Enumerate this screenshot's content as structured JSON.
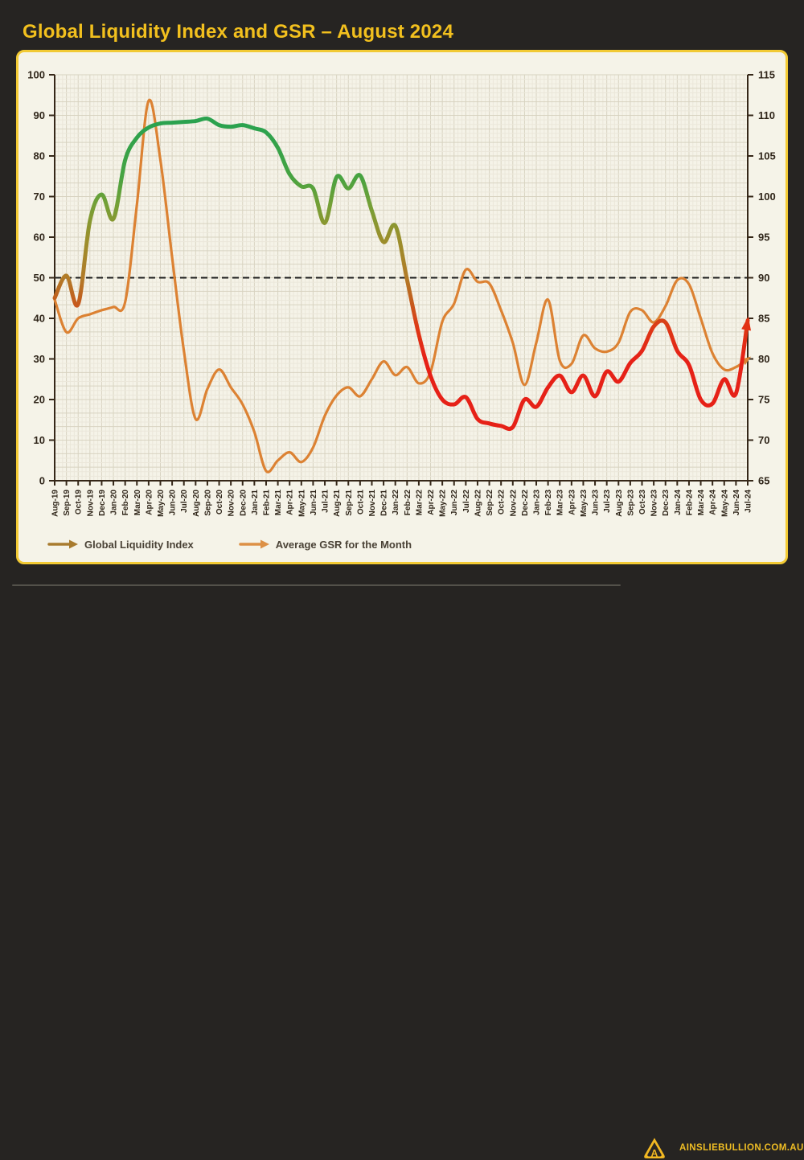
{
  "title": "Global Liquidity Index and GSR – August 2024",
  "colors": {
    "page_bg": "#262422",
    "title_gold": "#f2c01e",
    "panel_bg": "#f5f3e8",
    "panel_border": "#f2ca34",
    "axis": "#352718",
    "grid_minor": "#ebe7da",
    "grid_major": "#d8d3c1",
    "tick_label": "#2f2519",
    "reference_dash": "#1c1c1c",
    "footer_yellow": "#f0be24"
  },
  "footer": {
    "site_url": "AINSLIEBULLION.COM.AU",
    "logo": "ainslie-a-logo"
  },
  "chart_data": {
    "type": "line",
    "title": "Global Liquidity Index and GSR – August 2024",
    "grid": "fine graph paper",
    "legend_position": "bottom-left",
    "x_labels": [
      "Aug-19",
      "Sep-19",
      "Oct-19",
      "Nov-19",
      "Dec-19",
      "Jan-20",
      "Feb-20",
      "Mar-20",
      "Apr-20",
      "May-20",
      "Jun-20",
      "Jul-20",
      "Aug-20",
      "Sep-20",
      "Oct-20",
      "Nov-20",
      "Dec-20",
      "Jan-21",
      "Feb-21",
      "Mar-21",
      "Apr-21",
      "May-21",
      "Jun-21",
      "Jul-21",
      "Aug-21",
      "Sep-21",
      "Oct-21",
      "Nov-21",
      "Dec-21",
      "Jan-22",
      "Feb-22",
      "Mar-22",
      "Apr-22",
      "May-22",
      "Jun-22",
      "Jul-22",
      "Aug-22",
      "Sep-22",
      "Oct-22",
      "Nov-22",
      "Dec-22",
      "Jan-23",
      "Feb-23",
      "Mar-23",
      "Apr-23",
      "May-23",
      "Jun-23",
      "Jul-23",
      "Aug-23",
      "Sep-23",
      "Oct-23",
      "Nov-23",
      "Dec-23",
      "Jan-24",
      "Feb-24",
      "Mar-24",
      "Apr-24",
      "May-24",
      "Jun-24",
      "Jul-24"
    ],
    "left_axis": {
      "min": 0,
      "max": 100,
      "ticks": [
        100,
        90,
        80,
        70,
        60,
        50,
        40,
        30,
        20,
        10,
        0
      ]
    },
    "right_axis": {
      "min": 65,
      "max": 115,
      "ticks": [
        115,
        110,
        105,
        100,
        95,
        90,
        85,
        80,
        75,
        70,
        65
      ]
    },
    "reference_line": {
      "left_value": 50,
      "right_value": 90,
      "style": "dashed",
      "color": "#1c1c1c"
    },
    "series": [
      {
        "name": "Average GSR for the Month",
        "axis": "right",
        "color": "#dc8233",
        "width": 3.2,
        "arrow_end": true,
        "values": [
          87.3,
          83.3,
          85.0,
          85.5,
          86.0,
          86.4,
          87.0,
          99.0,
          111.8,
          104.5,
          92.5,
          81.0,
          72.6,
          76.3,
          78.7,
          76.5,
          74.4,
          71.0,
          66.2,
          67.5,
          68.5,
          67.3,
          69.1,
          73.0,
          75.5,
          76.5,
          75.4,
          77.5,
          79.7,
          78.0,
          79.0,
          77.0,
          78.4,
          84.6,
          86.8,
          91.0,
          89.5,
          89.3,
          86.0,
          82.0,
          76.8,
          82.0,
          87.3,
          79.8,
          79.4,
          82.9,
          81.3,
          80.9,
          82.0,
          85.8,
          86.0,
          84.5,
          86.5,
          89.7,
          89.2,
          85.0,
          80.7,
          78.7,
          79.0,
          80.0
        ]
      },
      {
        "name": "Global Liquidity Index",
        "axis": "left",
        "width": 5,
        "arrow_end": true,
        "arrow_color": "#e23214",
        "gradient_stops": [
          {
            "offset": 0.0,
            "color": "#2ba24e"
          },
          {
            "offset": 0.13,
            "color": "#2ba24e"
          },
          {
            "offset": 0.25,
            "color": "#46a341"
          },
          {
            "offset": 0.32,
            "color": "#74a036"
          },
          {
            "offset": 0.4,
            "color": "#99902c"
          },
          {
            "offset": 0.5,
            "color": "#b27b28"
          },
          {
            "offset": 0.56,
            "color": "#c45c1d"
          },
          {
            "offset": 0.62,
            "color": "#dd3a16"
          },
          {
            "offset": 0.7,
            "color": "#e62117"
          },
          {
            "offset": 1.0,
            "color": "#e62117"
          }
        ],
        "values": [
          45,
          50.5,
          43.5,
          64,
          70.5,
          64.5,
          79,
          84.5,
          87,
          88,
          88.2,
          88.4,
          88.6,
          89.2,
          87.6,
          87.2,
          87.6,
          86.8,
          85.8,
          82,
          75.5,
          72.5,
          72,
          63.5,
          74.8,
          72,
          75.2,
          66.5,
          58.8,
          62.8,
          49.5,
          36,
          25.8,
          20,
          18.8,
          20.6,
          15.2,
          14.1,
          13.5,
          13.2,
          20,
          18.2,
          23,
          25.9,
          21.8,
          25.9,
          20.8,
          26.9,
          24.4,
          29,
          32,
          38,
          39,
          32,
          28.5,
          20,
          19,
          25,
          21.5,
          39.5
        ]
      }
    ],
    "legend": [
      {
        "label": "Global Liquidity Index",
        "color": "#a87b2e"
      },
      {
        "label": "Average GSR for the Month",
        "color": "#dd9045"
      }
    ]
  }
}
